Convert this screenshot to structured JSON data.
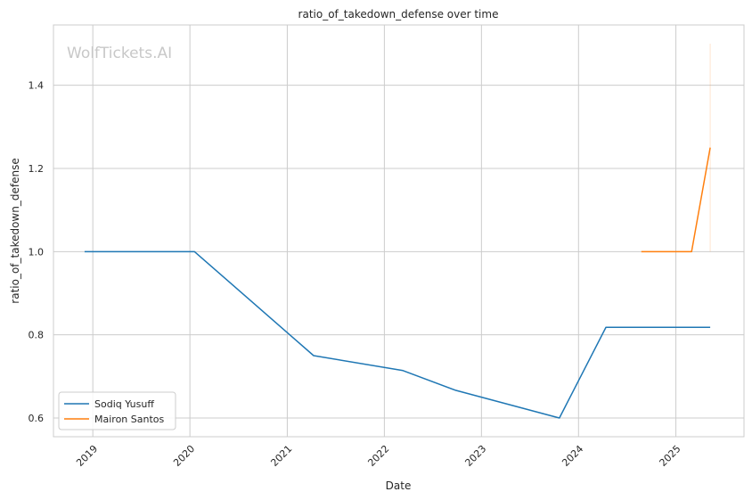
{
  "watermark": "WolfTickets.AI",
  "chart_data": {
    "type": "line",
    "title": "ratio_of_takedown_defense over time",
    "xlabel": "Date",
    "ylabel": "ratio_of_takedown_defense",
    "x_ticks": [
      "2019",
      "2020",
      "2021",
      "2022",
      "2023",
      "2024",
      "2025"
    ],
    "y_ticks": [
      "0.6",
      "0.8",
      "1.0",
      "1.2",
      "1.4"
    ],
    "xlim": [
      "2018-08-06",
      "2025-09-14"
    ],
    "ylim": [
      0.555,
      1.545
    ],
    "grid": true,
    "legend_position": "lower-left",
    "series": [
      {
        "name": "Sodiq Yusuff",
        "color": "#1f77b4",
        "points": [
          [
            "2018-12-01",
            1.0
          ],
          [
            "2020-01-18",
            1.0
          ],
          [
            "2021-04-10",
            0.75
          ],
          [
            "2022-03-12",
            0.714
          ],
          [
            "2022-09-24",
            0.667
          ],
          [
            "2023-10-21",
            0.6
          ],
          [
            "2024-04-13",
            0.818
          ],
          [
            "2025-05-10",
            0.818
          ]
        ]
      },
      {
        "name": "Mairon Santos",
        "color": "#ff7f0e",
        "points": [
          [
            "2024-08-24",
            1.0
          ],
          [
            "2025-03-01",
            1.0
          ],
          [
            "2025-05-10",
            1.25
          ]
        ],
        "band": {
          "x": "2025-05-10",
          "low": 1.0,
          "high": 1.5
        }
      }
    ]
  }
}
